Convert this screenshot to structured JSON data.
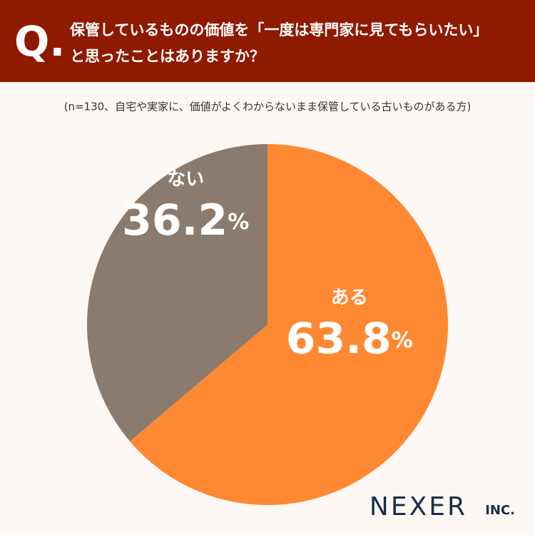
{
  "chart_data": {
    "type": "pie",
    "question_label": "Q.",
    "title_lines": [
      "保管しているものの価値を「一度は専門家に見てもらいたい」",
      "と思ったことはありますか？"
    ],
    "subtitle": "(n=130、自宅や実家に、価値がよくわからないまま保管している古いものがある方)",
    "categories": [
      "ある",
      "ない"
    ],
    "values": [
      63.8,
      36.2
    ],
    "value_labels": [
      "63.8%",
      "36.2%"
    ],
    "colors": [
      "#ff8833",
      "#8a7b6e"
    ],
    "brand": "NEXER",
    "brand_suffix": "INC."
  }
}
